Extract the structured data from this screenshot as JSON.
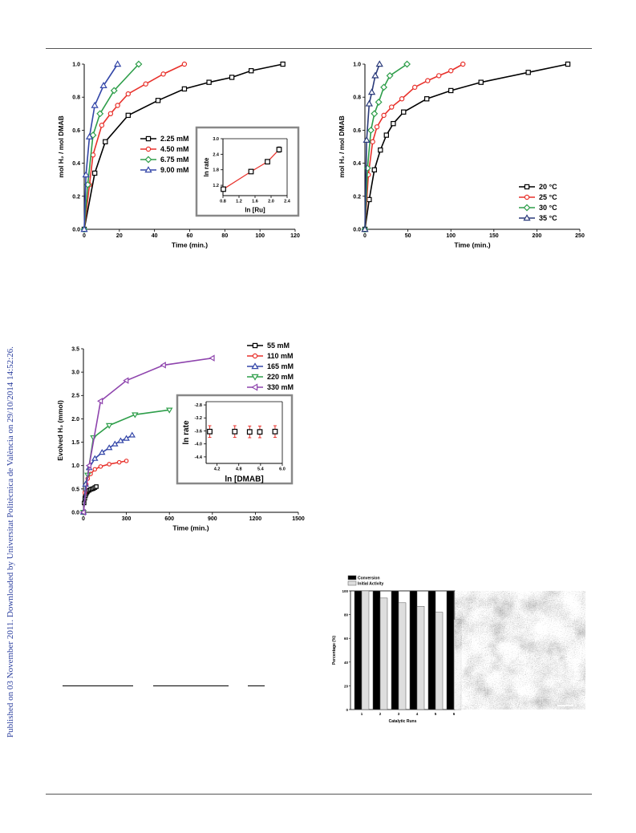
{
  "sidebar_text": "Published on 03 November 2011. Downloaded by Universitat Politècnica de València on 29/10/2014 14:52:26.",
  "colors": {
    "black": "#000000",
    "red": "#e8312b",
    "green": "#2e9e4a",
    "blue": "#3346a8",
    "navy": "#2a3a7a",
    "purple": "#8e44ad",
    "sidebar": "#2b3f9e"
  },
  "chart_data": [
    {
      "type": "line",
      "xlabel": "Time (min.)",
      "ylabel": "mol H₂ / mol DMAB",
      "xlim": [
        0,
        120
      ],
      "ylim": [
        0,
        1.0
      ],
      "xticks": [
        "0",
        "20",
        "40",
        "60",
        "80",
        "100",
        "120"
      ],
      "yticks": [
        "0.0",
        "0.2",
        "0.4",
        "0.6",
        "0.8",
        "1.0"
      ],
      "legend_position": "center",
      "series": [
        {
          "name": "2.25 mM",
          "color": "black",
          "marker": "square",
          "x": [
            0,
            6,
            12,
            25,
            42,
            57,
            71,
            84,
            95,
            113
          ],
          "y": [
            0,
            0.34,
            0.53,
            0.69,
            0.78,
            0.85,
            0.89,
            0.92,
            0.96,
            1.0
          ]
        },
        {
          "name": "4.50 mM",
          "color": "red",
          "marker": "circle",
          "x": [
            0,
            3,
            5,
            10,
            15,
            19,
            25,
            35,
            45,
            57
          ],
          "y": [
            0,
            0.27,
            0.45,
            0.63,
            0.7,
            0.75,
            0.82,
            0.88,
            0.94,
            1.0
          ]
        },
        {
          "name": "6.75 mM",
          "color": "green",
          "marker": "diamond",
          "x": [
            0,
            2,
            5,
            9,
            17,
            31
          ],
          "y": [
            0,
            0.27,
            0.57,
            0.7,
            0.84,
            1.0
          ]
        },
        {
          "name": "9.00 mM",
          "color": "blue",
          "marker": "triangle",
          "x": [
            0,
            1,
            3,
            6,
            11,
            19
          ],
          "y": [
            0,
            0.33,
            0.56,
            0.75,
            0.87,
            1.0
          ]
        }
      ],
      "inset": {
        "xlabel": "ln [Ru]",
        "ylabel": "ln rate",
        "xlim": [
          0.8,
          2.4
        ],
        "ylim": [
          0.8,
          3.0
        ],
        "xticks": [
          "0.8",
          "1.2",
          "1.6",
          "2.0",
          "2.4"
        ],
        "yticks": [
          "1.2",
          "1.8",
          "2.4",
          "3.0"
        ],
        "x": [
          0.81,
          1.5,
          1.91,
          2.2
        ],
        "y": [
          1.05,
          1.73,
          2.11,
          2.58
        ],
        "err": [
          0.04,
          0.05,
          0.07,
          0.1
        ]
      }
    },
    {
      "type": "line",
      "xlabel": "Time (min.)",
      "ylabel": "mol H₂ / mol DMAB",
      "xlim": [
        0,
        250
      ],
      "ylim": [
        0,
        1.0
      ],
      "xticks": [
        "0",
        "50",
        "100",
        "150",
        "200",
        "250"
      ],
      "yticks": [
        "0.0",
        "0.2",
        "0.4",
        "0.6",
        "0.8",
        "1.0"
      ],
      "legend_position": "bottom-right",
      "series": [
        {
          "name": "20 °C",
          "color": "black",
          "marker": "square",
          "x": [
            0,
            5,
            11,
            18,
            25,
            33,
            45,
            72,
            100,
            135,
            190,
            236
          ],
          "y": [
            0,
            0.18,
            0.36,
            0.48,
            0.57,
            0.64,
            0.71,
            0.79,
            0.84,
            0.89,
            0.95,
            1.0
          ]
        },
        {
          "name": "25 °C",
          "color": "red",
          "marker": "circle",
          "x": [
            0,
            4,
            9,
            14,
            22,
            31,
            43,
            58,
            73,
            86,
            100,
            114
          ],
          "y": [
            0,
            0.33,
            0.53,
            0.62,
            0.69,
            0.74,
            0.79,
            0.86,
            0.9,
            0.93,
            0.96,
            1.0
          ]
        },
        {
          "name": "30 °C",
          "color": "green",
          "marker": "diamond",
          "x": [
            0,
            3,
            7,
            11,
            16,
            22,
            29,
            49
          ],
          "y": [
            0,
            0.37,
            0.6,
            0.7,
            0.77,
            0.86,
            0.93,
            1.0
          ]
        },
        {
          "name": "35 °C",
          "color": "navy",
          "marker": "triangle",
          "x": [
            0,
            2,
            5,
            8,
            12,
            17
          ],
          "y": [
            0,
            0.54,
            0.76,
            0.83,
            0.93,
            1.0
          ]
        }
      ]
    },
    {
      "type": "line",
      "xlabel": "Time (min.)",
      "ylabel": "Evolved H₂ (mmol)",
      "xlim": [
        0,
        1500
      ],
      "ylim": [
        0,
        3.5
      ],
      "xticks": [
        "0",
        "300",
        "600",
        "900",
        "1200",
        "1500"
      ],
      "yticks": [
        "0.0",
        "0.5",
        "1.0",
        "1.5",
        "2.0",
        "2.5",
        "3.0",
        "3.5"
      ],
      "legend_position": "top-right",
      "series": [
        {
          "name": "55 mM",
          "color": "black",
          "marker": "square",
          "x": [
            0,
            5,
            10,
            15,
            20,
            25,
            30,
            40,
            50,
            60,
            70,
            80,
            90
          ],
          "y": [
            0,
            0.2,
            0.3,
            0.36,
            0.4,
            0.43,
            0.45,
            0.47,
            0.49,
            0.5,
            0.51,
            0.53,
            0.55
          ]
        },
        {
          "name": "110 mM",
          "color": "red",
          "marker": "circle",
          "x": [
            0,
            10,
            20,
            30,
            50,
            80,
            120,
            180,
            250,
            300
          ],
          "y": [
            0,
            0.42,
            0.6,
            0.72,
            0.82,
            0.92,
            0.98,
            1.03,
            1.07,
            1.1
          ]
        },
        {
          "name": "165 mM",
          "color": "blue",
          "marker": "triangle",
          "x": [
            0,
            15,
            40,
            80,
            130,
            180,
            220,
            260,
            300,
            340
          ],
          "y": [
            0,
            0.6,
            0.95,
            1.15,
            1.28,
            1.38,
            1.46,
            1.53,
            1.58,
            1.65
          ]
        },
        {
          "name": "220 mM",
          "color": "green",
          "marker": "triangle-down",
          "x": [
            0,
            30,
            70,
            180,
            360,
            600
          ],
          "y": [
            0,
            0.8,
            1.6,
            1.86,
            2.09,
            2.19
          ]
        },
        {
          "name": "330 mM",
          "color": "purple",
          "marker": "triangle-left",
          "x": [
            0,
            40,
            120,
            300,
            560,
            900
          ],
          "y": [
            0,
            1.0,
            2.38,
            2.82,
            3.15,
            3.3
          ]
        }
      ],
      "inset": {
        "xlabel": "ln [DMAB]",
        "ylabel": "ln rate",
        "xlim": [
          3.9,
          6.0
        ],
        "ylim": [
          -4.6,
          -2.7
        ],
        "xticks": [
          "4.2",
          "4.8",
          "5.4",
          "6.0"
        ],
        "yticks": [
          "-2.8",
          "-3.2",
          "-3.6",
          "-4.0",
          "-4.4"
        ],
        "x": [
          4.0,
          4.69,
          5.1,
          5.38,
          5.8
        ],
        "y": [
          -3.62,
          -3.62,
          -3.63,
          -3.63,
          -3.62
        ],
        "err": [
          0.18,
          0.18,
          0.18,
          0.18,
          0.18
        ]
      }
    },
    {
      "type": "bar",
      "xlabel": "Catalytic Runs",
      "ylabel": "Percentage (%)",
      "ylim": [
        0,
        100
      ],
      "categories": [
        "1",
        "2",
        "3",
        "4",
        "5",
        "6"
      ],
      "yticks": [
        "0",
        "20",
        "40",
        "60",
        "80",
        "100"
      ],
      "legend_position": "top-left",
      "series": [
        {
          "name": "Conversion",
          "color": "black",
          "values": [
            100,
            100,
            100,
            100,
            100,
            100
          ]
        },
        {
          "name": "Initial Activity",
          "color": "light-gray",
          "values": [
            100,
            94,
            90,
            87,
            82,
            76
          ]
        }
      ]
    }
  ]
}
